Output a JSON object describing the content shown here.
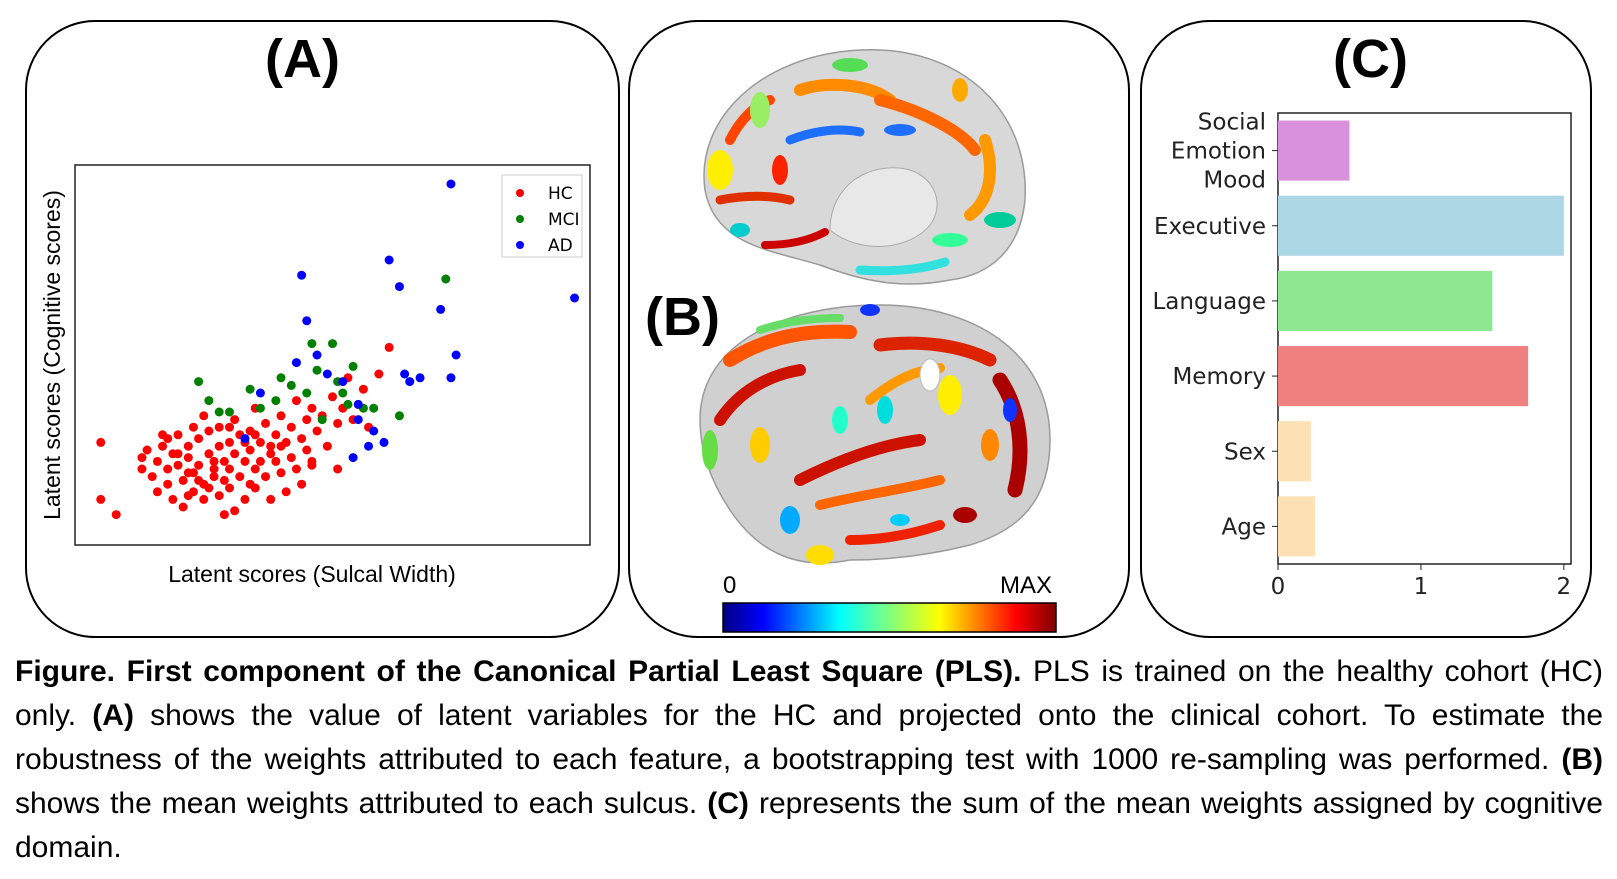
{
  "panel_a": {
    "letter": "(A)",
    "chart_data": {
      "type": "scatter",
      "xlabel": "Latent scores (Sulcal Width)",
      "ylabel": "Latent scores (Cognitive scores)",
      "xlim": [
        0,
        100
      ],
      "ylim": [
        0,
        100
      ],
      "legend_position": "top-right",
      "series": [
        {
          "name": "HC",
          "color": "#ff0000",
          "points": [
            [
              5,
              27
            ],
            [
              5,
              12
            ],
            [
              8,
              8
            ],
            [
              13,
              23
            ],
            [
              13,
              20
            ],
            [
              14,
              25
            ],
            [
              15,
              18
            ],
            [
              16,
              22
            ],
            [
              16,
              14
            ],
            [
              17,
              26
            ],
            [
              18,
              20
            ],
            [
              18,
              16
            ],
            [
              19,
              12
            ],
            [
              19,
              24
            ],
            [
              20,
              29
            ],
            [
              20,
              21
            ],
            [
              21,
              17
            ],
            [
              21,
              10
            ],
            [
              22,
              26
            ],
            [
              22,
              23
            ],
            [
              23,
              19
            ],
            [
              23,
              14
            ],
            [
              24,
              28
            ],
            [
              24,
              21
            ],
            [
              25,
              16
            ],
            [
              25,
              12
            ],
            [
              26,
              30
            ],
            [
              26,
              24
            ],
            [
              27,
              20
            ],
            [
              27,
              18
            ],
            [
              28,
              26
            ],
            [
              28,
              13
            ],
            [
              28,
              31
            ],
            [
              29,
              22
            ],
            [
              29,
              17
            ],
            [
              30,
              27
            ],
            [
              30,
              20
            ],
            [
              30,
              15
            ],
            [
              31,
              33
            ],
            [
              31,
              24
            ],
            [
              31,
              9
            ],
            [
              32,
              18
            ],
            [
              32,
              29
            ],
            [
              33,
              22
            ],
            [
              33,
              12
            ],
            [
              34,
              30
            ],
            [
              34,
              25
            ],
            [
              35,
              20
            ],
            [
              35,
              36
            ],
            [
              35,
              15
            ],
            [
              36,
              27
            ],
            [
              36,
              22
            ],
            [
              37,
              32
            ],
            [
              37,
              18
            ],
            [
              38,
              26
            ],
            [
              38,
              12
            ],
            [
              39,
              29
            ],
            [
              39,
              22
            ],
            [
              40,
              34
            ],
            [
              40,
              19
            ],
            [
              41,
              27
            ],
            [
              41,
              14
            ],
            [
              42,
              31
            ],
            [
              42,
              23
            ],
            [
              43,
              38
            ],
            [
              43,
              20
            ],
            [
              44,
              28
            ],
            [
              44,
              16
            ],
            [
              45,
              33
            ],
            [
              45,
              25
            ],
            [
              46,
              21
            ],
            [
              46,
              36
            ],
            [
              47,
              30
            ],
            [
              48,
              34
            ],
            [
              49,
              26
            ],
            [
              50,
              39
            ],
            [
              51,
              32
            ],
            [
              51,
              20
            ],
            [
              52,
              36
            ],
            [
              53,
              44
            ],
            [
              54,
              33
            ],
            [
              55,
              37
            ],
            [
              56,
              41
            ],
            [
              57,
              31
            ],
            [
              59,
              45
            ],
            [
              61,
              52
            ],
            [
              46,
              22
            ],
            [
              24,
              17
            ],
            [
              22,
              19
            ],
            [
              26,
              15
            ],
            [
              33,
              27
            ],
            [
              38,
              24
            ],
            [
              30,
              31
            ],
            [
              20,
              24
            ],
            [
              27,
              22
            ],
            [
              35,
              29
            ],
            [
              29,
              8
            ],
            [
              22,
              13
            ],
            [
              34,
              16
            ],
            [
              40,
              26
            ],
            [
              18,
              28
            ],
            [
              25,
              34
            ],
            [
              17,
              29
            ],
            [
              23,
              31
            ]
          ]
        },
        {
          "name": "MCI",
          "color": "#008000",
          "points": [
            [
              24,
              43
            ],
            [
              26,
              38
            ],
            [
              28,
              35
            ],
            [
              30,
              35
            ],
            [
              36,
              36
            ],
            [
              39,
              38
            ],
            [
              42,
              42
            ],
            [
              46,
              53
            ],
            [
              47,
              46
            ],
            [
              50,
              53
            ],
            [
              51,
              43
            ],
            [
              52,
              40
            ],
            [
              53,
              37
            ],
            [
              56,
              36
            ],
            [
              58,
              36
            ],
            [
              63,
              34
            ],
            [
              72,
              70
            ],
            [
              54,
              47
            ],
            [
              45,
              40
            ],
            [
              48,
              33
            ],
            [
              40,
              44
            ],
            [
              34,
              41
            ]
          ]
        },
        {
          "name": "AD",
          "color": "#0000ff",
          "points": [
            [
              33,
              28
            ],
            [
              36,
              40
            ],
            [
              43,
              48
            ],
            [
              44,
              71
            ],
            [
              45,
              59
            ],
            [
              47,
              50
            ],
            [
              49,
              45
            ],
            [
              55,
              37
            ],
            [
              55,
              33
            ],
            [
              57,
              26
            ],
            [
              58,
              30
            ],
            [
              61,
              75
            ],
            [
              63,
              68
            ],
            [
              64,
              45
            ],
            [
              65,
              43
            ],
            [
              67,
              44
            ],
            [
              71,
              62
            ],
            [
              73,
              44
            ],
            [
              74,
              50
            ],
            [
              73,
              95
            ],
            [
              97,
              65
            ],
            [
              54,
              23
            ],
            [
              60,
              27
            ],
            [
              52,
              43
            ]
          ]
        }
      ]
    }
  },
  "panel_b": {
    "letter": "(B)",
    "colorbar": {
      "min_label": "0",
      "max_label": "MAX"
    }
  },
  "panel_c": {
    "letter": "(C)",
    "chart_data": {
      "type": "bar",
      "orientation": "horizontal",
      "categories": [
        "Social\nEmotion\nMood",
        "Executive",
        "Language",
        "Memory",
        "Sex",
        "Age"
      ],
      "values": [
        0.5,
        2.0,
        1.5,
        1.75,
        0.23,
        0.26
      ],
      "colors": [
        "#da91dc",
        "#acd8e6",
        "#8fe88f",
        "#ef8080",
        "#fde0b4",
        "#fde0b4"
      ],
      "xlim": [
        0,
        2.05
      ],
      "xticks": [
        "0",
        "1",
        "2"
      ]
    }
  },
  "caption": {
    "title": "Figure. First component of the Canonical Partial Least Square (PLS).",
    "text1": " PLS is trained on the healthy cohort (HC) only. ",
    "a_ref": "(A)",
    "text2": " shows the value of latent variables for the HC and projected onto the clinical cohort. To estimate the robustness of the weights attributed to each feature, a bootstrapping test with 1000 re-sampling was performed. ",
    "b_ref": "(B)",
    "text3": " shows the mean weights attributed to each sulcus. ",
    "c_ref": "(C)",
    "text4": " represents the sum of the mean weights assigned by cognitive domain."
  }
}
